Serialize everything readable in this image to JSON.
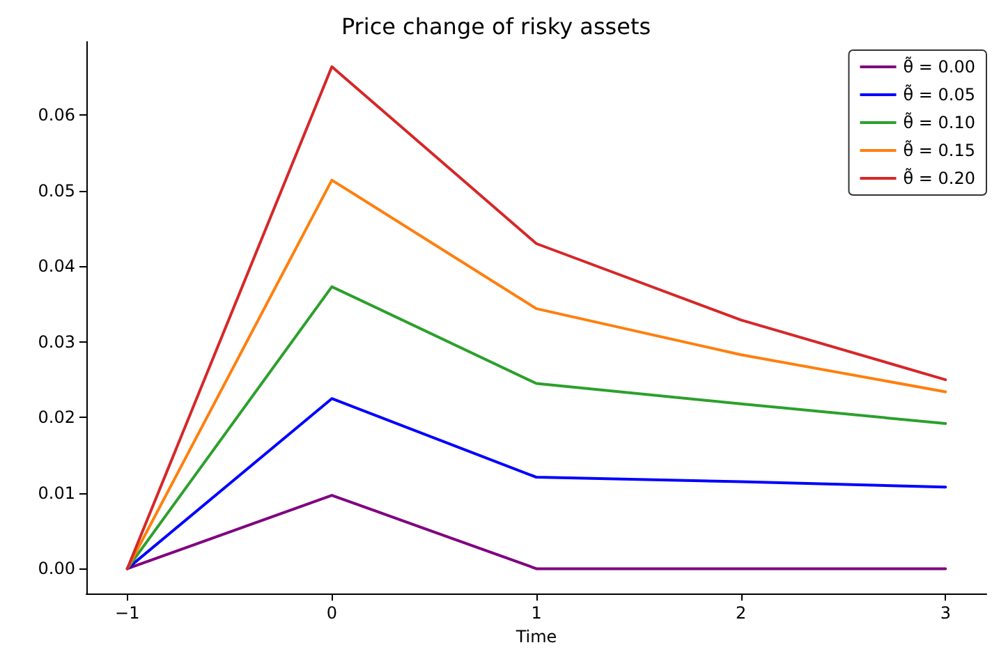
{
  "chart_data": {
    "type": "line",
    "title": "Price change of risky assets",
    "xlabel": "Time",
    "x": [
      -1,
      0,
      1,
      2,
      3
    ],
    "series": [
      {
        "name": "θ̃ = 0.00",
        "color": "#800080",
        "values": [
          0,
          0.0097,
          0,
          0,
          0
        ]
      },
      {
        "name": "θ̃ = 0.05",
        "color": "#0000ff",
        "values": [
          0,
          0.0225,
          0.0121,
          0.0115,
          0.0108
        ]
      },
      {
        "name": "θ̃ = 0.10",
        "color": "#2ca02c",
        "values": [
          0,
          0.0373,
          0.0245,
          0.0218,
          0.0192
        ]
      },
      {
        "name": "θ̃ = 0.15",
        "color": "#ff7f0e",
        "values": [
          0,
          0.0514,
          0.0344,
          0.0283,
          0.0234
        ]
      },
      {
        "name": "θ̃ = 0.20",
        "color": "#d62728",
        "values": [
          0,
          0.0664,
          0.043,
          0.0329,
          0.025
        ]
      }
    ],
    "xlim": [
      -1.2,
      3.2
    ],
    "xticks": [
      {
        "value": -1,
        "label": "−1"
      },
      0,
      1,
      2,
      3
    ],
    "ylim": [
      -0.0033,
      0.0697
    ],
    "yticks": [
      {
        "value": 0,
        "label": "0.00"
      },
      {
        "value": 0.01,
        "label": "0.01"
      },
      {
        "value": 0.02,
        "label": "0.02"
      },
      {
        "value": 0.03,
        "label": "0.03"
      },
      {
        "value": 0.04,
        "label": "0.04"
      },
      {
        "value": 0.05,
        "label": "0.05"
      },
      {
        "value": 0.06,
        "label": "0.06"
      }
    ],
    "grid": false,
    "legend": "top right",
    "marker": "none",
    "line_style": "solid"
  }
}
